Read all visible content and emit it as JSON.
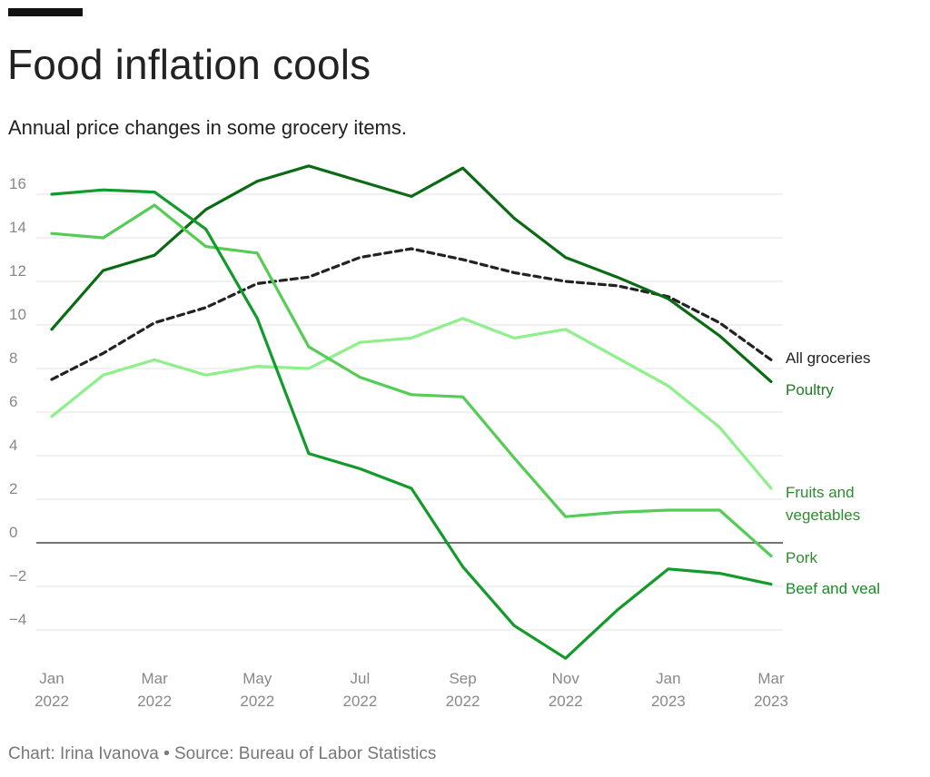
{
  "header": {
    "title": "Food inflation cools",
    "subtitle": "Annual price changes in some grocery items."
  },
  "footer": {
    "source": "Chart: Irina Ivanova • Source: Bureau of Labor Statistics"
  },
  "chart_data": {
    "type": "line",
    "title": "Food inflation cools",
    "subtitle": "Annual price changes in some grocery items.",
    "xlabel": "",
    "ylabel": "",
    "ylim": [
      -5.6,
      17.5
    ],
    "yticks": [
      16,
      14,
      12,
      10,
      8,
      6,
      4,
      2,
      0,
      -2,
      -4
    ],
    "ytick_labels": [
      "16",
      "14",
      "12",
      "10",
      "8",
      "6",
      "4",
      "2",
      "0",
      "−2",
      "−4"
    ],
    "x": [
      "Jan 2022",
      "Feb 2022",
      "Mar 2022",
      "Apr 2022",
      "May 2022",
      "Jun 2022",
      "Jul 2022",
      "Aug 2022",
      "Sep 2022",
      "Oct 2022",
      "Nov 2022",
      "Dec 2022",
      "Jan 2023",
      "Feb 2023",
      "Mar 2023"
    ],
    "xticks": [
      {
        "index": 0,
        "line1": "Jan",
        "line2": "2022"
      },
      {
        "index": 2,
        "line1": "Mar",
        "line2": "2022"
      },
      {
        "index": 4,
        "line1": "May",
        "line2": "2022"
      },
      {
        "index": 6,
        "line1": "Jul",
        "line2": "2022"
      },
      {
        "index": 8,
        "line1": "Sep",
        "line2": "2022"
      },
      {
        "index": 10,
        "line1": "Nov",
        "line2": "2022"
      },
      {
        "index": 12,
        "line1": "Jan",
        "line2": "2023"
      },
      {
        "index": 14,
        "line1": "Mar",
        "line2": "2023"
      }
    ],
    "grid": true,
    "legend": "inline-right",
    "series": [
      {
        "name": "All groceries",
        "label_lines": [
          "All groceries"
        ],
        "color": "#222222",
        "label_color": "#222222",
        "dashed": true,
        "values": [
          7.5,
          8.7,
          10.1,
          10.8,
          11.9,
          12.2,
          13.1,
          13.5,
          13.0,
          12.4,
          12.0,
          11.8,
          11.3,
          10.1,
          8.4
        ]
      },
      {
        "name": "Poultry",
        "label_lines": [
          "Poultry"
        ],
        "color": "#0b6b14",
        "label_color": "#1f7a24",
        "dashed": false,
        "values": [
          9.8,
          12.5,
          13.2,
          15.3,
          16.6,
          17.3,
          16.6,
          15.9,
          17.2,
          14.9,
          13.1,
          12.2,
          11.2,
          9.5,
          7.4
        ]
      },
      {
        "name": "Fruits and vegetables",
        "label_lines": [
          "Fruits and",
          "vegetables"
        ],
        "color": "#8ef08a",
        "label_color": "#2e8b2e",
        "dashed": false,
        "values": [
          5.8,
          7.7,
          8.4,
          7.7,
          8.1,
          8.0,
          9.2,
          9.4,
          10.3,
          9.4,
          9.8,
          8.5,
          7.2,
          5.3,
          2.5
        ]
      },
      {
        "name": "Pork",
        "label_lines": [
          "Pork"
        ],
        "color": "#55cc55",
        "label_color": "#2e8b2e",
        "dashed": false,
        "values": [
          14.2,
          14.0,
          15.5,
          13.6,
          13.3,
          9.0,
          7.6,
          6.8,
          6.7,
          3.9,
          1.2,
          1.4,
          1.5,
          1.5,
          -0.6
        ]
      },
      {
        "name": "Beef and veal",
        "label_lines": [
          "Beef and veal"
        ],
        "color": "#139a2a",
        "label_color": "#1a8a25",
        "dashed": false,
        "values": [
          16.0,
          16.2,
          16.1,
          14.4,
          10.3,
          4.1,
          3.4,
          2.5,
          -1.1,
          -3.8,
          -5.3,
          -3.1,
          -1.2,
          -1.4,
          -1.9
        ]
      }
    ]
  }
}
